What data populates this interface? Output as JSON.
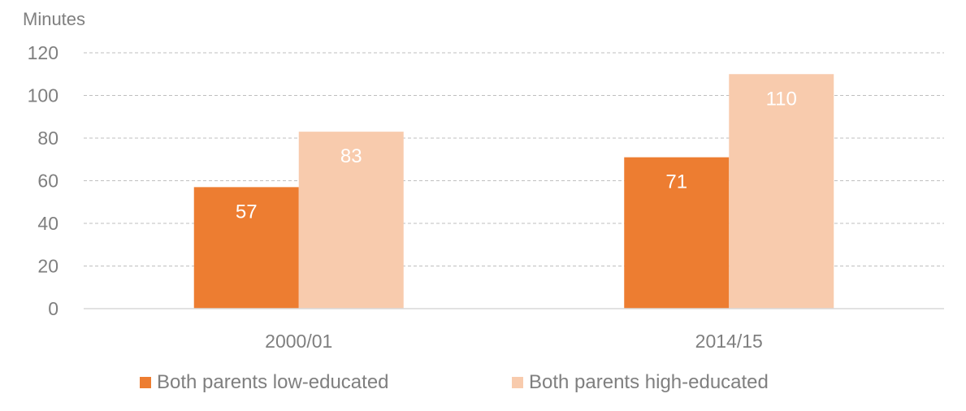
{
  "chart_data": {
    "type": "bar",
    "ylabel": "Minutes",
    "ylim": [
      0,
      120
    ],
    "yticks": [
      0,
      20,
      40,
      60,
      80,
      100,
      120
    ],
    "categories": [
      "2000/01",
      "2014/15"
    ],
    "series": [
      {
        "name": "Both parents low-educated",
        "values": [
          57,
          71
        ],
        "color": "#ED7D31"
      },
      {
        "name": "Both parents high-educated",
        "values": [
          83,
          110
        ],
        "color": "#F8CBAD"
      }
    ],
    "grid": true,
    "legend_position": "bottom"
  }
}
